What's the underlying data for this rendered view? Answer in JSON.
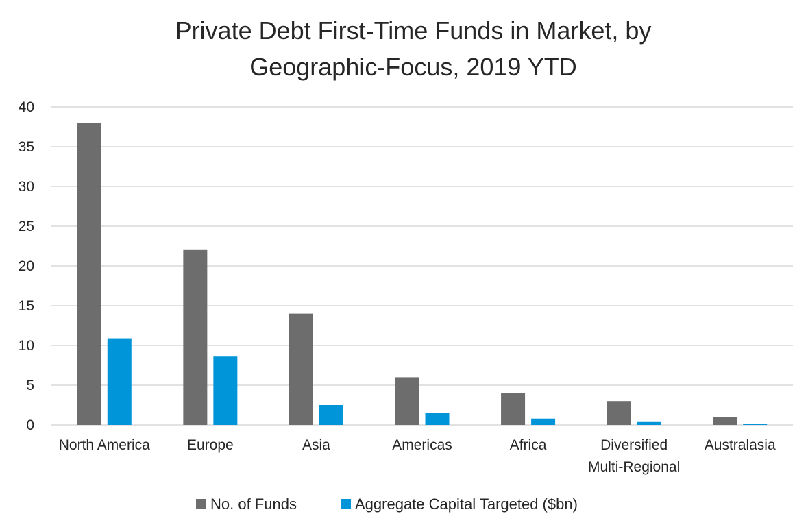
{
  "chart_data": {
    "type": "bar",
    "title_lines": [
      "Private Debt First-Time Funds in Market, by",
      "Geographic-Focus, 2019 YTD"
    ],
    "categories": [
      [
        "North America"
      ],
      [
        "Europe"
      ],
      [
        "Asia"
      ],
      [
        "Americas"
      ],
      [
        "Africa"
      ],
      [
        "Diversified",
        "Multi-Regional"
      ],
      [
        "Australasia"
      ]
    ],
    "series": [
      {
        "name": "No. of Funds",
        "color": "#6d6d6d",
        "values": [
          38,
          22,
          14,
          6,
          4,
          3,
          1
        ]
      },
      {
        "name": "Aggregate Capital Targeted ($bn)",
        "color": "#0095d9",
        "values": [
          10.9,
          8.6,
          2.5,
          1.5,
          0.8,
          0.45,
          0.1
        ]
      }
    ],
    "ylim": [
      0,
      40
    ],
    "yticks": [
      "0",
      "5",
      "10",
      "15",
      "20",
      "25",
      "30",
      "35",
      "40"
    ],
    "grid": true,
    "legend_position": "bottom"
  }
}
